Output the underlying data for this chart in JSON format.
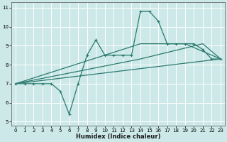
{
  "xlabel": "Humidex (Indice chaleur)",
  "ylabel": "",
  "bg_color": "#cce8e8",
  "grid_color": "#ffffff",
  "line_color": "#2a7a70",
  "xlim": [
    -0.5,
    23.5
  ],
  "ylim": [
    4.8,
    11.3
  ],
  "xticks": [
    0,
    1,
    2,
    3,
    4,
    5,
    6,
    7,
    8,
    9,
    10,
    11,
    12,
    13,
    14,
    15,
    16,
    17,
    18,
    19,
    20,
    21,
    22,
    23
  ],
  "yticks": [
    5,
    6,
    7,
    8,
    9,
    10,
    11
  ],
  "series1_x": [
    0,
    1,
    2,
    3,
    4,
    5,
    6,
    7,
    8,
    9,
    10,
    11,
    12,
    13,
    14,
    15,
    16,
    17,
    18,
    19,
    20,
    21,
    22,
    23
  ],
  "series1_y": [
    7.0,
    7.0,
    7.0,
    7.0,
    7.0,
    6.6,
    5.4,
    7.0,
    8.5,
    9.3,
    8.5,
    8.5,
    8.5,
    8.5,
    10.8,
    10.8,
    10.3,
    9.1,
    9.1,
    9.1,
    9.1,
    8.8,
    8.3,
    8.3
  ],
  "series2_x": [
    0,
    23
  ],
  "series2_y": [
    7.0,
    8.3
  ],
  "series3_x": [
    0,
    14,
    21,
    23
  ],
  "series3_y": [
    7.0,
    8.3,
    9.1,
    8.3
  ],
  "series4_x": [
    0,
    14,
    19,
    23
  ],
  "series4_y": [
    7.0,
    9.1,
    9.1,
    8.3
  ]
}
